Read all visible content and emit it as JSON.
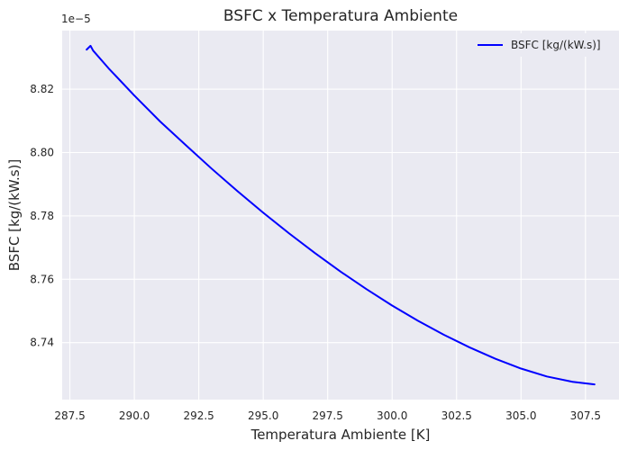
{
  "chart_data": {
    "type": "line",
    "title": "BSFC x Temperatura Ambiente",
    "xlabel": "Temperatura Ambiente [K]",
    "ylabel": "BSFC [kg/(kW.s)]",
    "y_offset_label": "1e−5",
    "y_scale": 1e-05,
    "xlim": [
      287.2,
      308.8
    ],
    "ylim": [
      8.722,
      8.8385
    ],
    "x_ticks": [
      287.5,
      290.0,
      292.5,
      295.0,
      297.5,
      300.0,
      302.5,
      305.0,
      307.5
    ],
    "x_tick_labels": [
      "287.5",
      "290.0",
      "292.5",
      "295.0",
      "297.5",
      "300.0",
      "302.5",
      "305.0",
      "307.5"
    ],
    "y_ticks": [
      8.74,
      8.76,
      8.78,
      8.8,
      8.82
    ],
    "y_tick_labels": [
      "8.74",
      "8.76",
      "8.78",
      "8.80",
      "8.82"
    ],
    "grid": true,
    "background": "#EAEAF2",
    "legend_position": "top-right",
    "series": [
      {
        "name": "BSFC [kg/(kW.s)]",
        "color": "#0000FF",
        "x": [
          288.15,
          288.3,
          288.4,
          289.0,
          290.0,
          291.0,
          292.0,
          293.0,
          294.0,
          295.0,
          296.0,
          297.0,
          298.0,
          299.0,
          300.0,
          301.0,
          302.0,
          303.0,
          304.0,
          305.0,
          306.0,
          307.0,
          307.85
        ],
        "y": [
          8.8325,
          8.8337,
          8.8322,
          8.8266,
          8.818,
          8.8098,
          8.8023,
          8.7949,
          8.7878,
          8.781,
          8.7745,
          8.7683,
          8.7624,
          8.7569,
          8.7517,
          8.7469,
          8.7425,
          8.7385,
          8.7349,
          8.7318,
          8.7293,
          8.7276,
          8.7268
        ]
      }
    ]
  }
}
